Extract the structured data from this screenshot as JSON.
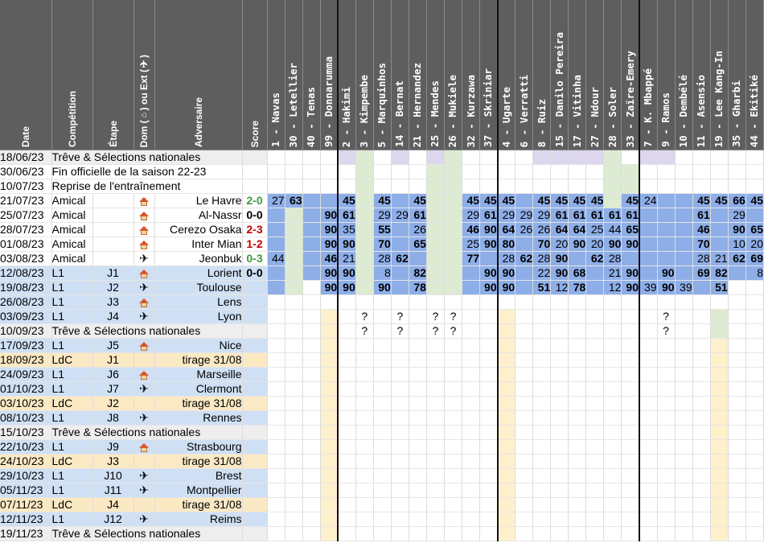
{
  "headers": {
    "date": "Date",
    "competition": "Compétition",
    "step": "Étape",
    "dom_pre": "Dom (",
    "dom_post": ") ou Ext (",
    "dom_end": ")",
    "opponent": "Adversaire",
    "score": "Score"
  },
  "players": [
    "1 - Navas",
    "30 - Letellier",
    "40 - Tenas",
    "99 - Donnarumma",
    "2 - Hakimi",
    "3 - Kimpembe",
    "5 - Marquinhos",
    "14 - Bernat",
    "21 - Hernandez",
    "25 - Mendes",
    "26 - Mukiele",
    "32 - Kurzawa",
    "37 - Skriniar",
    "4 - Ugarte",
    "6 - Verratti",
    "8 - Ruiz",
    "15 - Danilo Pereira",
    "17 - Vitinha",
    "27 - Ndour",
    "28 - Soler",
    "33 - Zaïre-Emery",
    "7 - K. Mbappé",
    "9 - Ramos",
    "10 - Dembélé",
    "11 - Asensio",
    "19 - Lee Kang-In",
    "35 - Gharbi",
    "44 - Ekitiké"
  ],
  "rows": [
    {
      "date": "18/06/23",
      "comp": "Trêve & Sélections nationales",
      "step": "",
      "dom": "",
      "opp": "",
      "score": ""
    },
    {
      "date": "30/06/23",
      "comp": "Fin officielle de la saison 22-23",
      "step": "",
      "dom": "",
      "opp": "",
      "score": ""
    },
    {
      "date": "10/07/23",
      "comp": "Reprise de l'entraînement",
      "step": "",
      "dom": "",
      "opp": "",
      "score": ""
    },
    {
      "date": "21/07/23",
      "comp": "Amical",
      "step": "",
      "dom": "home",
      "opp": "Le Havre",
      "score": "2-0",
      "sc": "#3e9a3e",
      "cells": [
        "27",
        "63",
        "",
        "",
        "45",
        "",
        "45",
        "",
        "45",
        "",
        "",
        "45",
        "45",
        "45",
        "",
        "45",
        "45",
        "45",
        "45",
        "",
        "45",
        "24",
        "",
        "",
        "45",
        "45",
        "66",
        "45"
      ]
    },
    {
      "date": "25/07/23",
      "comp": "Amical",
      "step": "",
      "dom": "home",
      "opp": "Al-Nassr",
      "score": "0-0",
      "sc": "#000000",
      "cells": [
        "",
        "",
        "",
        "90",
        "61",
        "",
        "29",
        "29",
        "61",
        "",
        "",
        "29",
        "61",
        "29",
        "29",
        "29",
        "61",
        "61",
        "61",
        "61",
        "61",
        "",
        "",
        "",
        "61",
        "",
        "29",
        ""
      ]
    },
    {
      "date": "28/07/23",
      "comp": "Amical",
      "step": "",
      "dom": "home",
      "opp": "Cerezo Osaka",
      "score": "2-3",
      "sc": "#c00000",
      "cells": [
        "",
        "",
        "",
        "90",
        "35",
        "",
        "55",
        "",
        "26",
        "",
        "",
        "46",
        "90",
        "64",
        "26",
        "26",
        "64",
        "64",
        "25",
        "44",
        "65",
        "",
        "",
        "",
        "46",
        "",
        "90",
        "65"
      ]
    },
    {
      "date": "01/08/23",
      "comp": "Amical",
      "step": "",
      "dom": "home",
      "opp": "Inter Mian",
      "score": "1-2",
      "sc": "#c00000",
      "cells": [
        "",
        "",
        "",
        "90",
        "90",
        "",
        "70",
        "",
        "65",
        "",
        "",
        "25",
        "90",
        "80",
        "",
        "70",
        "20",
        "90",
        "20",
        "90",
        "90",
        "",
        "",
        "",
        "70",
        "",
        "10",
        "20"
      ]
    },
    {
      "date": "03/08/23",
      "comp": "Amical",
      "step": "",
      "dom": "plane",
      "opp": "Jeonbuk",
      "score": "0-3",
      "sc": "#3e9a3e",
      "cells": [
        "44",
        "",
        "",
        "46",
        "21",
        "",
        "28",
        "62",
        "",
        "",
        "",
        "77",
        "",
        "28",
        "62",
        "28",
        "90",
        "",
        "62",
        "28",
        "",
        "",
        "",
        "",
        "28",
        "21",
        "62",
        "69"
      ]
    },
    {
      "date": "12/08/23",
      "comp": "L1",
      "step": "J1",
      "dom": "home",
      "opp": "Lorient",
      "score": "0-0",
      "sc": "#000000",
      "cells": [
        "",
        "",
        "",
        "90",
        "90",
        "",
        "8",
        "",
        "82",
        "",
        "",
        "",
        "90",
        "90",
        "",
        "22",
        "90",
        "68",
        "",
        "21",
        "90",
        "",
        "90",
        "",
        "69",
        "82",
        "",
        "8"
      ]
    },
    {
      "date": "19/08/23",
      "comp": "L1",
      "step": "J2",
      "dom": "plane",
      "opp": "Toulouse",
      "score": "",
      "cells": [
        "",
        "",
        "",
        "90",
        "90",
        "",
        "90",
        "",
        "78",
        "",
        "",
        "",
        "90",
        "90",
        "",
        "51",
        "12",
        "78",
        "",
        "12",
        "90",
        "39",
        "90",
        "39",
        "",
        "51",
        "",
        ""
      ]
    },
    {
      "date": "26/08/23",
      "comp": "L1",
      "step": "J3",
      "dom": "home",
      "opp": "Lens",
      "score": ""
    },
    {
      "date": "03/09/23",
      "comp": "L1",
      "step": "J4",
      "dom": "plane",
      "opp": "Lyon",
      "score": ""
    },
    {
      "date": "10/09/23",
      "comp": "Trêve & Sélections nationales",
      "step": "",
      "dom": "",
      "opp": "",
      "score": ""
    },
    {
      "date": "17/09/23",
      "comp": "L1",
      "step": "J5",
      "dom": "home",
      "opp": "Nice",
      "score": ""
    },
    {
      "date": "18/09/23",
      "comp": "LdC",
      "step": "J1",
      "dom": "",
      "opp": "tirage 31/08",
      "score": ""
    },
    {
      "date": "24/09/23",
      "comp": "L1",
      "step": "J6",
      "dom": "home",
      "opp": "Marseille",
      "score": ""
    },
    {
      "date": "01/10/23",
      "comp": "L1",
      "step": "J7",
      "dom": "plane",
      "opp": "Clermont",
      "score": ""
    },
    {
      "date": "03/10/23",
      "comp": "LdC",
      "step": "J2",
      "dom": "",
      "opp": "tirage 31/08",
      "score": ""
    },
    {
      "date": "08/10/23",
      "comp": "L1",
      "step": "J8",
      "dom": "plane",
      "opp": "Rennes",
      "score": ""
    },
    {
      "date": "15/10/23",
      "comp": "Trêve & Sélections nationales",
      "step": "",
      "dom": "",
      "opp": "",
      "score": ""
    },
    {
      "date": "22/10/23",
      "comp": "L1",
      "step": "J9",
      "dom": "home",
      "opp": "Strasbourg",
      "score": ""
    },
    {
      "date": "24/10/23",
      "comp": "LdC",
      "step": "J3",
      "dom": "",
      "opp": "tirage 31/08",
      "score": ""
    },
    {
      "date": "29/10/23",
      "comp": "L1",
      "step": "J10",
      "dom": "plane",
      "opp": "Brest",
      "score": ""
    },
    {
      "date": "05/11/23",
      "comp": "L1",
      "step": "J11",
      "dom": "plane",
      "opp": "Montpellier",
      "score": ""
    },
    {
      "date": "07/11/23",
      "comp": "LdC",
      "step": "J4",
      "dom": "",
      "opp": "tirage 31/08",
      "score": ""
    },
    {
      "date": "12/11/23",
      "comp": "L1",
      "step": "J12",
      "dom": "plane",
      "opp": "Reims",
      "score": ""
    },
    {
      "date": "19/11/23",
      "comp": "Trêve & Sélections nationales",
      "step": "",
      "dom": "",
      "opp": "",
      "score": ""
    }
  ],
  "question_mark": "?",
  "colors": {
    "header": "#5e5e5e",
    "blue": "#8eaee8",
    "green_light": "#dcebd2",
    "lavender": "#dcd6ee",
    "yellow_light": "#fff0cc",
    "l1_row": "#cfe0f4",
    "ldc_row": "#fbe9c4",
    "treve_row": "#eeeeee",
    "highlight": "#ffff00"
  }
}
